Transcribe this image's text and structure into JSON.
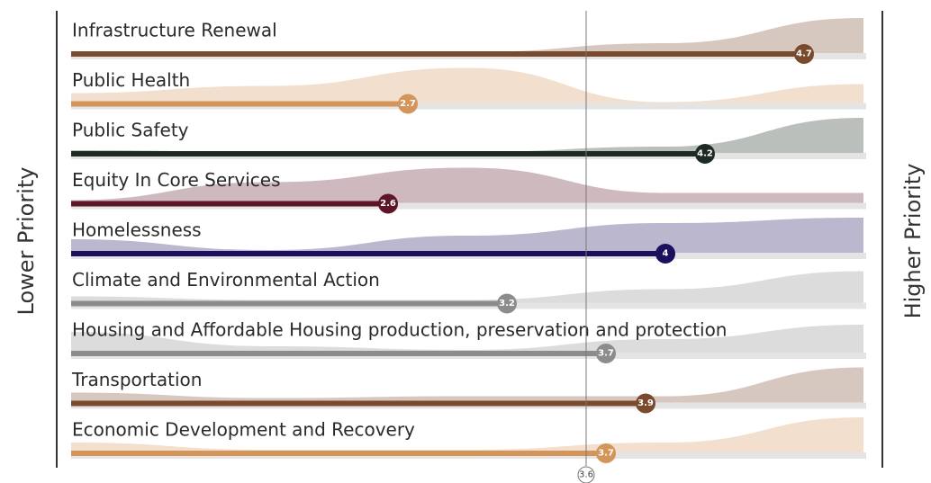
{
  "chart_data": {
    "type": "bar",
    "orientation": "horizontal",
    "left_label": "Lower Priority",
    "right_label": "Higher Priority",
    "categories": [
      "Infrastructure Renewal",
      "Public Health",
      "Public Safety",
      "Equity In Core Services",
      "Homelessness",
      "Climate and Environmental Action",
      "Housing and Affordable Housing production, preservation and protection",
      "Transportation",
      "Economic Development and Recovery"
    ],
    "values": [
      4.7,
      2.7,
      4.2,
      2.6,
      4,
      3.2,
      3.7,
      3.9,
      3.7
    ],
    "colors": [
      "#7a4a2c",
      "#d4955a",
      "#1f2a22",
      "#5c1628",
      "#1c0f5e",
      "#8c8c8c",
      "#8c8c8c",
      "#7a4a2c",
      "#d4955a"
    ],
    "distributions": [
      [
        0.02,
        0.02,
        0.05,
        0.3,
        1
      ],
      [
        0.3,
        0.5,
        1,
        0.05,
        0.55
      ],
      [
        0.1,
        0.05,
        0.05,
        0.2,
        1
      ],
      [
        0.1,
        0.6,
        1,
        0.3,
        0.3
      ],
      [
        0.4,
        0.1,
        0.5,
        0.85,
        1
      ],
      [
        0.2,
        0.1,
        0.1,
        0.4,
        0.9
      ],
      [
        0.6,
        0.2,
        0.1,
        0.4,
        0.8
      ],
      [
        0.3,
        0.15,
        0.2,
        0.2,
        1
      ],
      [
        0.3,
        0.1,
        0.1,
        0.3,
        1
      ]
    ],
    "xlim": [
      1,
      5
    ],
    "reference": {
      "value": 3.6
    }
  }
}
